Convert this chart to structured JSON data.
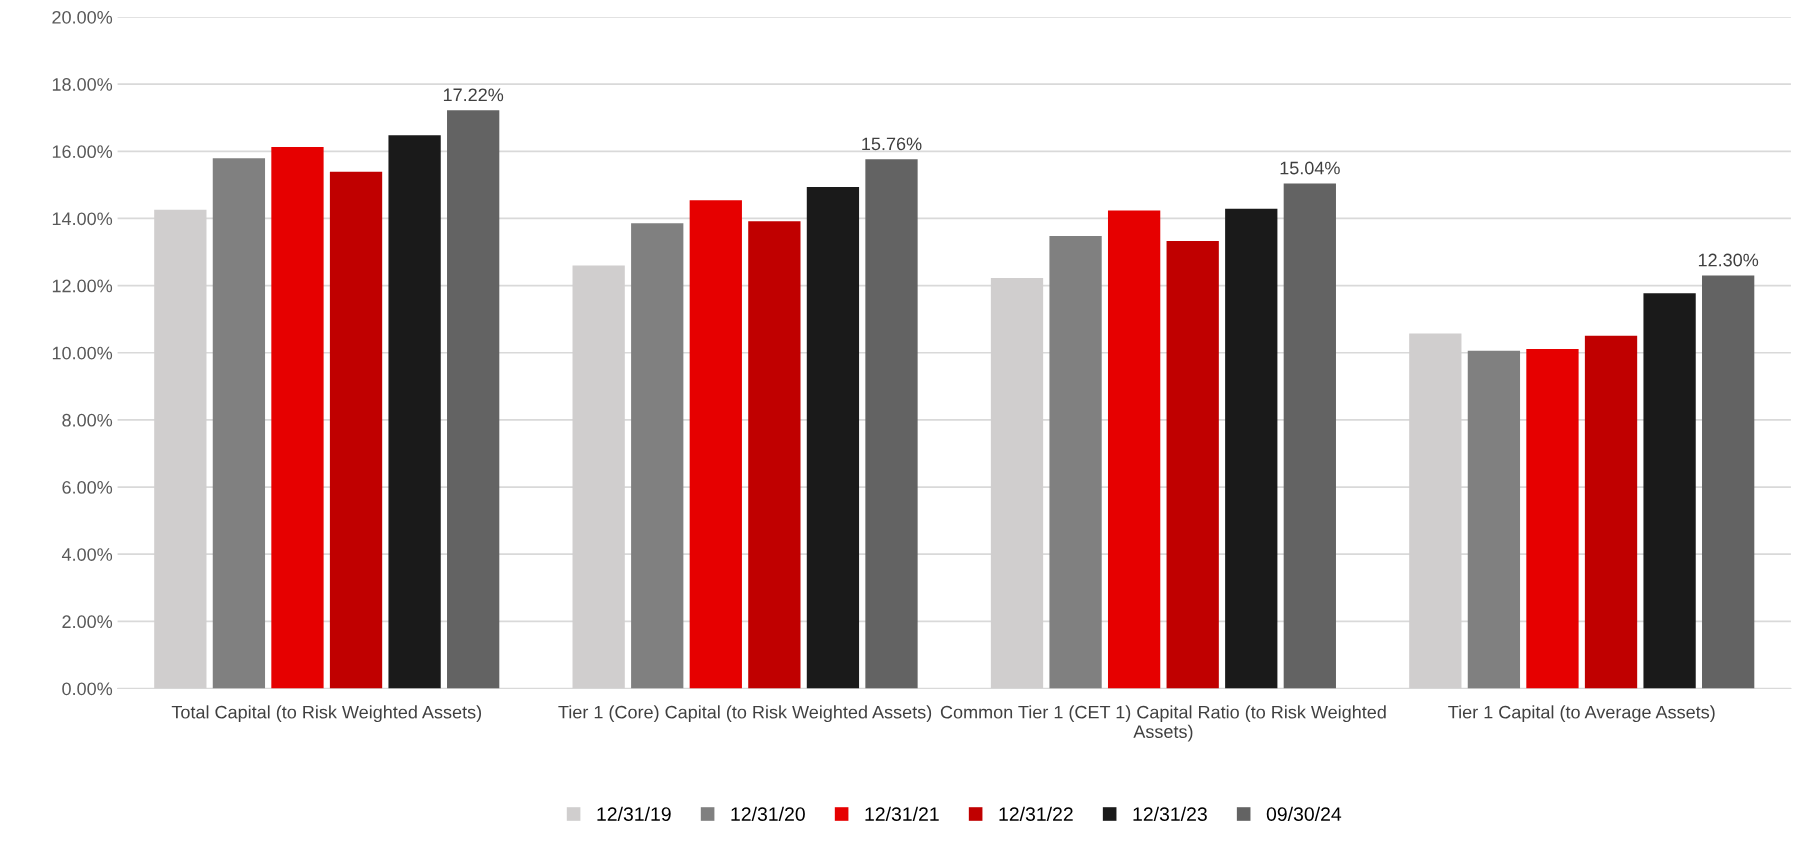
{
  "chart_data": {
    "type": "bar",
    "categories": [
      "Total Capital (to Risk Weighted Assets)",
      "Tier 1 (Core) Capital (to Risk Weighted Assets)",
      "Common Tier 1 (CET 1) Capital Ratio (to Risk Weighted Assets)",
      "Tier 1 Capital (to Average Assets)"
    ],
    "series": [
      {
        "name": "12/31/19",
        "color": "#d0cece",
        "values": [
          14.26,
          12.6,
          12.23,
          10.57
        ]
      },
      {
        "name": "12/31/20",
        "color": "#808080",
        "values": [
          15.79,
          13.86,
          13.48,
          10.06
        ]
      },
      {
        "name": "12/31/21",
        "color": "#e60000",
        "values": [
          16.13,
          14.54,
          14.24,
          10.11
        ]
      },
      {
        "name": "12/31/22",
        "color": "#c00000",
        "values": [
          15.39,
          13.92,
          13.33,
          10.51
        ]
      },
      {
        "name": "12/31/23",
        "color": "#1a1a1a",
        "values": [
          16.48,
          14.94,
          14.29,
          11.77
        ]
      },
      {
        "name": "09/30/24",
        "color": "#636363",
        "values": [
          17.22,
          15.76,
          15.04,
          12.3
        ],
        "value_labels": [
          "17.22%",
          "15.76%",
          "15.04%",
          "12.30%"
        ]
      }
    ],
    "ylim": [
      0,
      20
    ],
    "yticks": [
      {
        "value": 0,
        "label": "0.00%"
      },
      {
        "value": 2,
        "label": "2.00%"
      },
      {
        "value": 4,
        "label": "4.00%"
      },
      {
        "value": 6,
        "label": "6.00%"
      },
      {
        "value": 8,
        "label": "8.00%"
      },
      {
        "value": 10,
        "label": "10.00%"
      },
      {
        "value": 12,
        "label": "12.00%"
      },
      {
        "value": 14,
        "label": "14.00%"
      },
      {
        "value": 16,
        "label": "16.00%"
      },
      {
        "value": 18,
        "label": "18.00%"
      },
      {
        "value": 20,
        "label": "20.00%"
      }
    ],
    "grid": "y",
    "legend": "bottom"
  }
}
